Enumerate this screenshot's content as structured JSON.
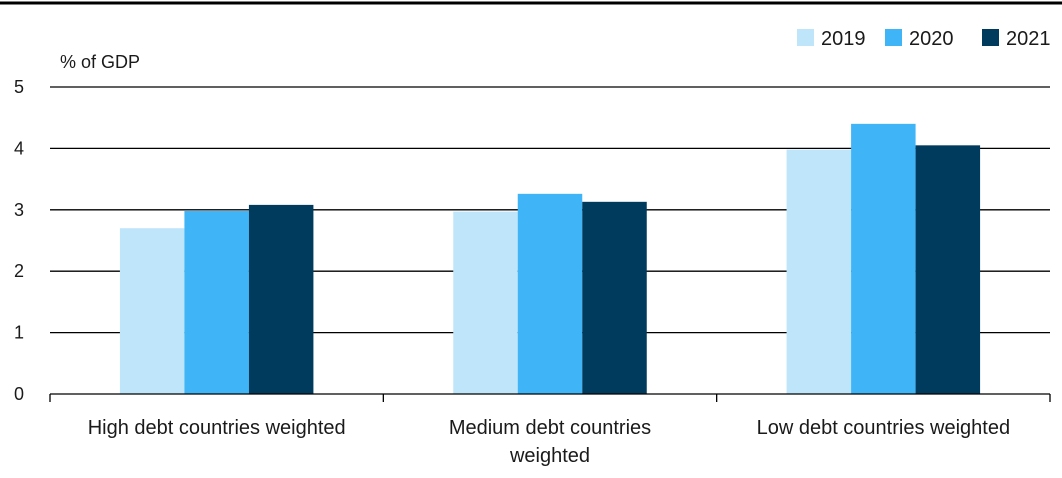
{
  "chart_data": {
    "type": "bar",
    "unit_label": "% of GDP",
    "categories": [
      [
        "High debt countries weighted"
      ],
      [
        "Medium debt countries",
        "weighted"
      ],
      [
        "Low debt countries weighted"
      ]
    ],
    "series": [
      {
        "name": "2019",
        "color": "#bfe5fb",
        "values": [
          2.7,
          2.97,
          3.98
        ]
      },
      {
        "name": "2020",
        "color": "#3fb4f7",
        "values": [
          2.98,
          3.26,
          4.4
        ]
      },
      {
        "name": "2021",
        "color": "#003a5d",
        "values": [
          3.08,
          3.13,
          4.05
        ]
      }
    ],
    "yticks": [
      0,
      1,
      2,
      3,
      4,
      5
    ],
    "ylim": [
      0,
      5
    ],
    "grid": true,
    "legend_position": "top-right"
  }
}
